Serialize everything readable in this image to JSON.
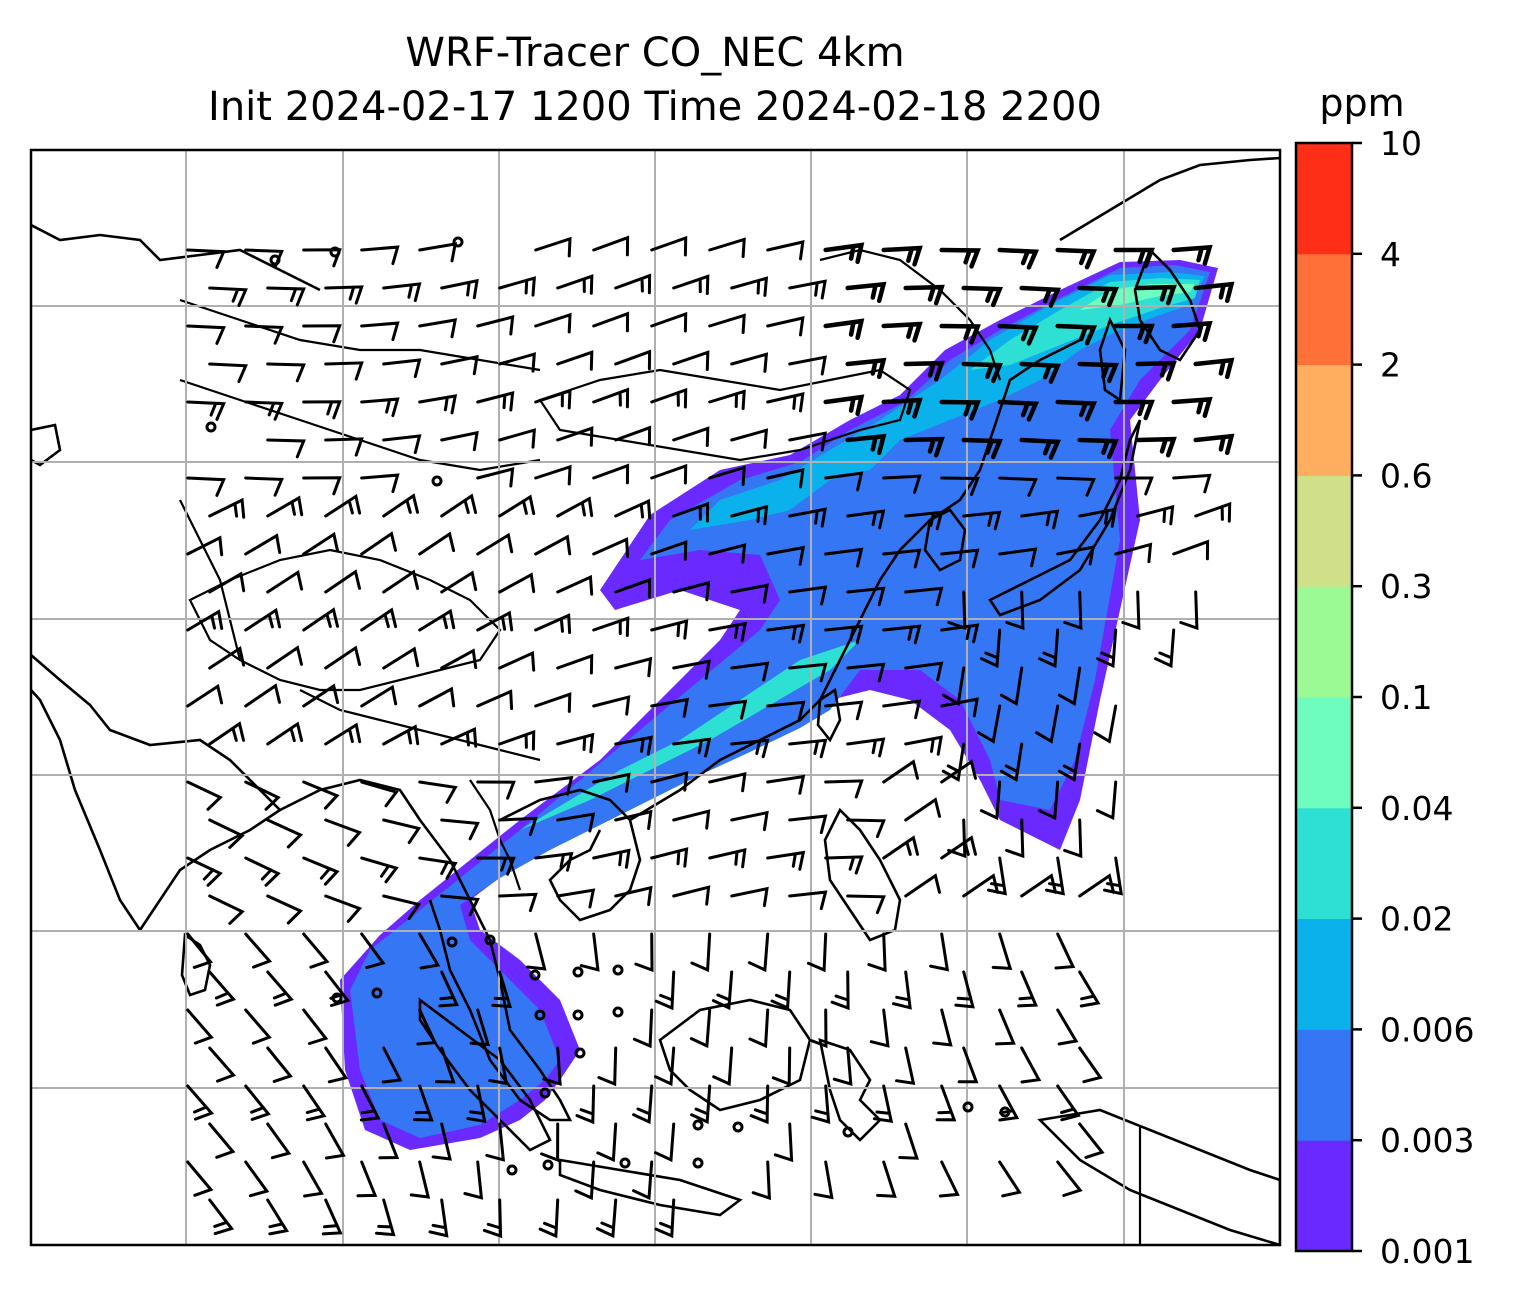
{
  "title": {
    "line1": "WRF-Tracer CO_NEC 4km",
    "line2": "Init 2024-02-17 1200 Time 2024-02-18 2200"
  },
  "colorbar": {
    "unit": "ppm",
    "ticks": [
      "0.001",
      "0.003",
      "0.006",
      "0.02",
      "0.04",
      "0.1",
      "0.3",
      "0.6",
      "2",
      "4",
      "10"
    ],
    "colors": [
      "#6a29ff",
      "#3476f3",
      "#0ab1ea",
      "#2ee0d3",
      "#6efdbe",
      "#9cfa95",
      "#cfe088",
      "#ffae5f",
      "#ff7139",
      "#ff2e17"
    ]
  },
  "chart_data": {
    "type": "map",
    "variable": "CO_NEC tracer",
    "unit": "ppm",
    "levels": [
      0.001,
      0.003,
      0.006,
      0.02,
      0.04,
      0.1,
      0.3,
      0.6,
      2,
      4,
      10
    ],
    "gridlines": true,
    "overlay": "wind barbs",
    "legend": "colorbar right"
  }
}
